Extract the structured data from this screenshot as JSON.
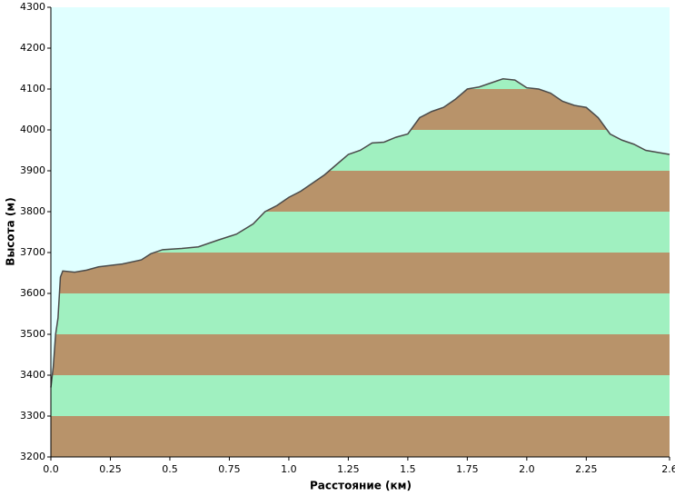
{
  "chart_data": {
    "type": "area",
    "xlabel": "Расстояние   (км)",
    "ylabel": "Высота (м)",
    "x": [
      0.0,
      0.01,
      0.02,
      0.03,
      0.04,
      0.05,
      0.1,
      0.15,
      0.2,
      0.3,
      0.38,
      0.42,
      0.47,
      0.55,
      0.62,
      0.7,
      0.78,
      0.85,
      0.9,
      0.95,
      1.0,
      1.05,
      1.1,
      1.15,
      1.2,
      1.25,
      1.3,
      1.35,
      1.4,
      1.45,
      1.5,
      1.55,
      1.6,
      1.65,
      1.7,
      1.75,
      1.8,
      1.85,
      1.9,
      1.95,
      2.0,
      2.05,
      2.1,
      2.15,
      2.2,
      2.25,
      2.3,
      2.35,
      2.4,
      2.45,
      2.5,
      2.55,
      2.6
    ],
    "values": [
      3370,
      3420,
      3500,
      3540,
      3640,
      3655,
      3652,
      3657,
      3665,
      3672,
      3682,
      3697,
      3707,
      3710,
      3714,
      3730,
      3745,
      3770,
      3800,
      3815,
      3835,
      3850,
      3870,
      3890,
      3915,
      3940,
      3950,
      3968,
      3970,
      3982,
      3990,
      4030,
      4045,
      4055,
      4075,
      4100,
      4105,
      4115,
      4125,
      4122,
      4103,
      4100,
      4090,
      4070,
      4060,
      4055,
      4030,
      3990,
      3975,
      3965,
      3950,
      3945,
      3940
    ],
    "line_color": "#4a4a4a",
    "background": "#e0ffff",
    "band_colors": [
      "#b8936a",
      "#a0f0c0"
    ],
    "xlim": [
      0,
      2.6
    ],
    "xticks": [
      {
        "value": 0,
        "label": "0.0"
      },
      0.25,
      0.5,
      0.75,
      {
        "value": 1,
        "label": "1.0"
      },
      1.25,
      1.5,
      1.75,
      {
        "value": 2,
        "label": "2.0"
      },
      2.25,
      2.6
    ],
    "ylim": [
      3200,
      4300
    ],
    "yticks": [
      3200,
      3300,
      3400,
      3500,
      3600,
      3700,
      3800,
      3900,
      4000,
      4100,
      4200,
      4300
    ]
  }
}
